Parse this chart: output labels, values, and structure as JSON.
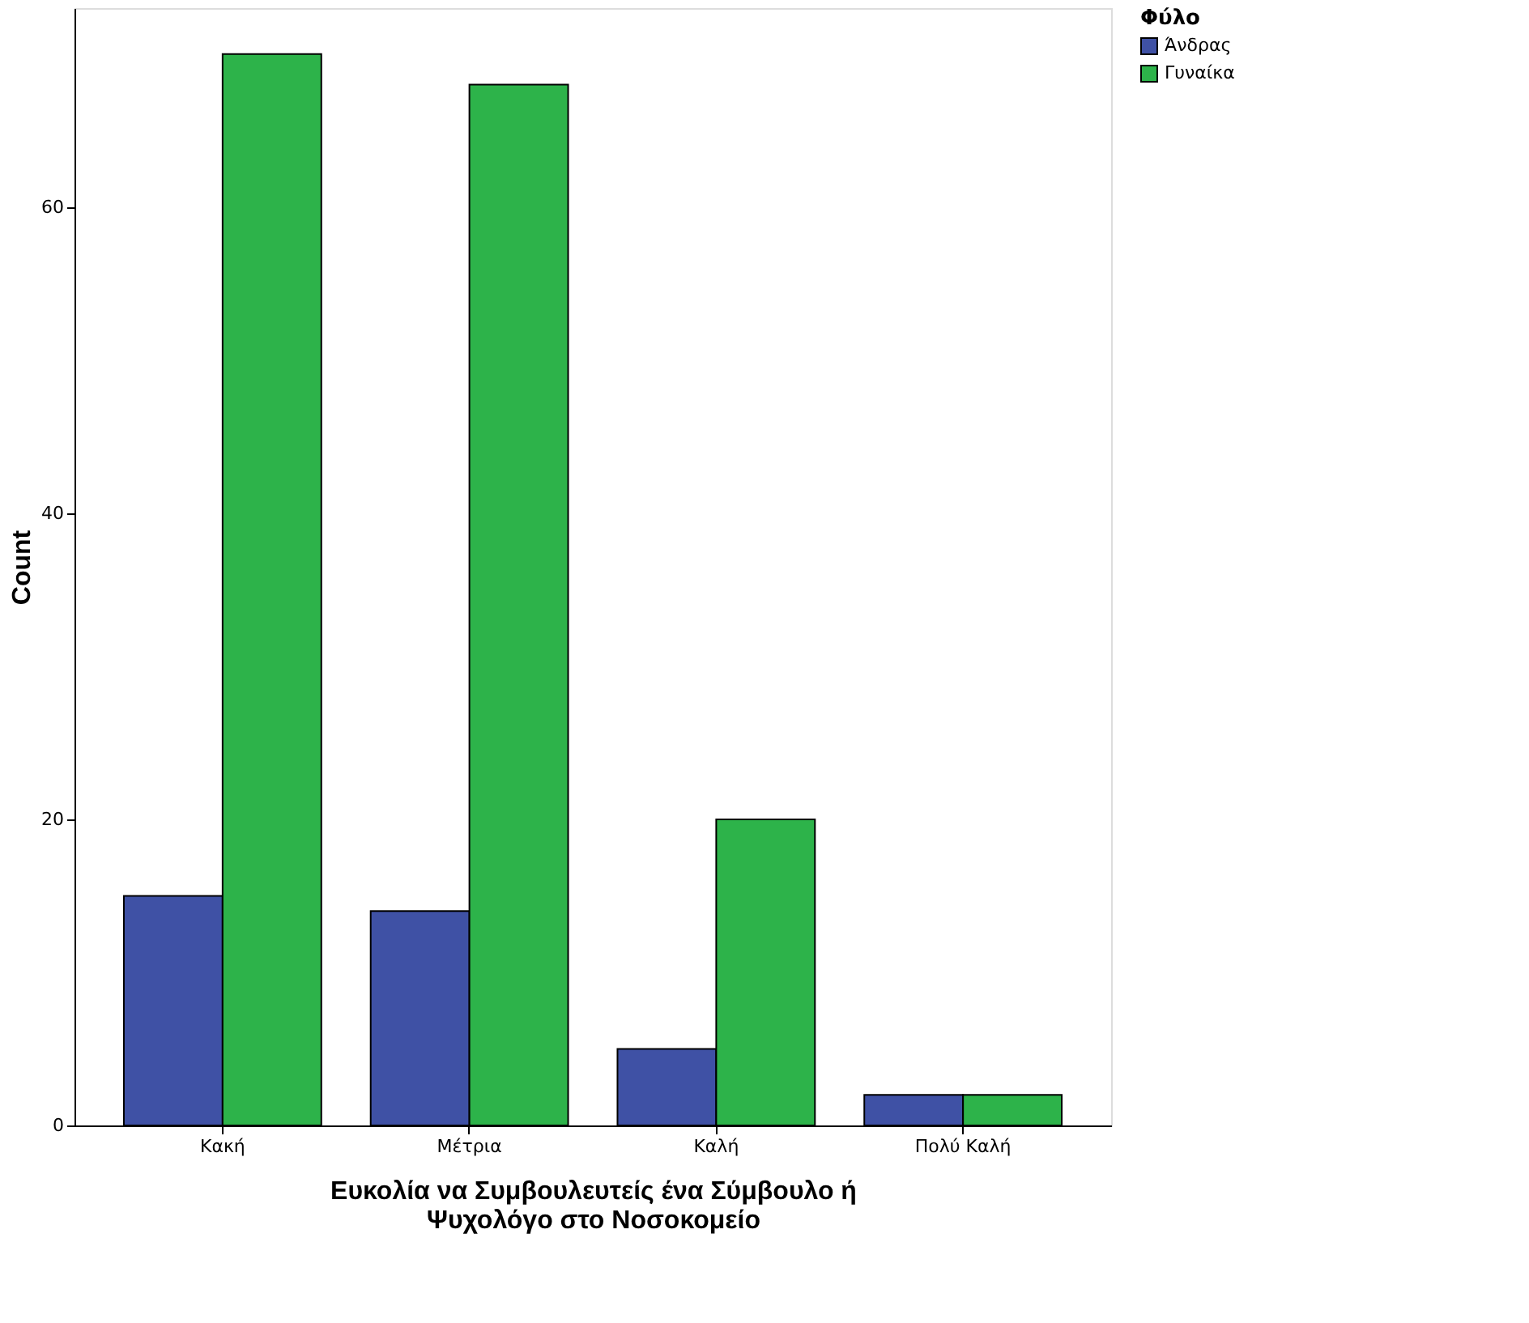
{
  "chart_data": {
    "type": "bar",
    "categories": [
      "Κακή",
      "Μέτρια",
      "Καλή",
      "Πολύ Καλή"
    ],
    "series": [
      {
        "name": "Άνδρας",
        "color": "#3f51a5",
        "values": [
          15,
          14,
          5,
          2
        ]
      },
      {
        "name": "Γυναίκα",
        "color": "#2db34a",
        "values": [
          70,
          68,
          20,
          2
        ]
      }
    ],
    "xlabel": "Ευκολία να Συμβουλευτείς ένα Σύμβουλο ή\nΨυχολόγο στο Νοσοκομείο",
    "ylabel": "Count",
    "legend_title": "Φύλο",
    "ylim": [
      0,
      73
    ],
    "yticks": [
      0,
      20,
      40,
      60
    ],
    "grid": false,
    "legend": "top right"
  }
}
